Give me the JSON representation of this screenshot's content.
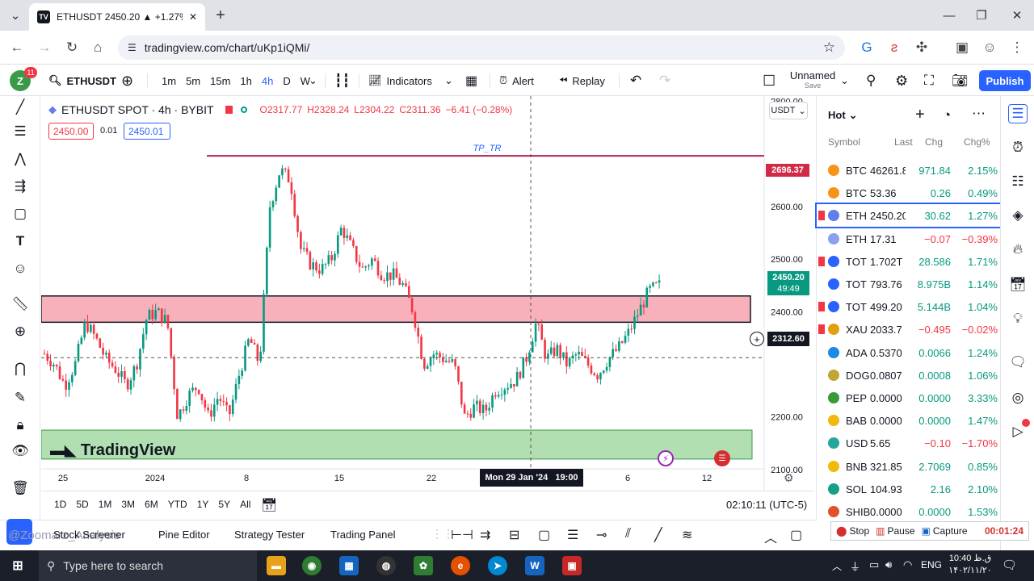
{
  "browser": {
    "tab_title": "ETHUSDT 2450.20 ▲ +1.27% U",
    "tab_favicon": "TV",
    "url": "tradingview.com/chart/uKp1iQMi/"
  },
  "toolbar": {
    "avatar": "Z",
    "notif_count": "11",
    "symbol": "ETHUSDT",
    "intervals": [
      "1m",
      "5m",
      "15m",
      "1h",
      "4h",
      "D",
      "W"
    ],
    "active_interval": "4h",
    "indicators": "Indicators",
    "alert": "Alert",
    "replay": "Replay",
    "layout_name": "Unnamed",
    "layout_status": "Save",
    "publish": "Publish"
  },
  "chart": {
    "legend_title": "ETHUSDT SPOT · 4h · BYBIT",
    "open": "O2317.77",
    "high": "H2328.24",
    "low": "L2304.22",
    "close": "C2311.36",
    "change": "−6.41 (−0.28%)",
    "sell_price": "2450.00",
    "spread": "0.01",
    "buy_price": "2450.01",
    "currency": "USDT",
    "line_label": "TP_TR",
    "line_price": "2696.37",
    "last_price": "2450.20",
    "countdown": "49:49",
    "crosshair_price": "2312.60",
    "crosshair_date": "Mon 29 Jan '24   19:00",
    "watermark": "TradingView",
    "price_ticks": [
      "2800.00",
      "2600.00",
      "2500.00",
      "2400.00",
      "2200.00",
      "2100.00"
    ],
    "date_ticks": [
      "25",
      "2024",
      "8",
      "15",
      "22",
      "6",
      "12"
    ]
  },
  "chart_data": {
    "type": "candlestick",
    "title": "ETHUSDT SPOT · 4h · BYBIT",
    "y_unit": "USDT",
    "ylim": [
      2060,
      2810
    ],
    "x_ticks": [
      "25",
      "2024",
      "8",
      "15",
      "22",
      "6",
      "12"
    ],
    "levels": [
      {
        "label": "TP_TR",
        "price": 2696.37,
        "color": "#b2234a"
      },
      {
        "label": "resistance zone",
        "from": 2380,
        "to": 2430,
        "color": "#f7a8b4"
      },
      {
        "label": "support zone",
        "from": 2120,
        "to": 2175,
        "color": "#a3d9a5"
      }
    ],
    "close_path": [
      2320,
      2300,
      2260,
      2300,
      2380,
      2350,
      2310,
      2290,
      2260,
      2300,
      2390,
      2400,
      2380,
      2200,
      2240,
      2260,
      2200,
      2240,
      2200,
      2280,
      2350,
      2300,
      2600,
      2670,
      2650,
      2520,
      2490,
      2480,
      2500,
      2560,
      2520,
      2480,
      2500,
      2470,
      2470,
      2450,
      2400,
      2300,
      2320,
      2310,
      2300,
      2200,
      2220,
      2210,
      2250,
      2260,
      2270,
      2310,
      2380,
      2310,
      2330,
      2300,
      2320,
      2300,
      2280,
      2310,
      2330,
      2360,
      2400,
      2440,
      2450
    ],
    "last_price": 2450.2
  },
  "bottom": {
    "ranges": [
      "1D",
      "5D",
      "1M",
      "3M",
      "6M",
      "YTD",
      "1Y",
      "5Y",
      "All"
    ],
    "time": "02:10:11 (UTC-5)"
  },
  "panels": [
    "Stock Screener",
    "Pine Editor",
    "Strategy Tester",
    "Trading Panel"
  ],
  "watermark_text": "@Zoomarz_Analysis",
  "watchlist": {
    "title": "Hot",
    "headers": [
      "Symbol",
      "Last",
      "Chg",
      "Chg%"
    ],
    "rows": [
      {
        "sym": "BTC",
        "last": "46261.8",
        "chg": "971.84",
        "pct": "2.15%",
        "dir": "up",
        "color": "#f7931a",
        "flag": false
      },
      {
        "sym": "BTC",
        "last": "53.36",
        "chg": "0.26",
        "pct": "0.49%",
        "dir": "up",
        "color": "#f7931a",
        "flag": false
      },
      {
        "sym": "ETH",
        "last": "2450.20",
        "chg": "30.62",
        "pct": "1.27%",
        "dir": "up",
        "color": "#627eea",
        "flag": true
      },
      {
        "sym": "ETH",
        "last": "17.31",
        "chg": "−0.07",
        "pct": "−0.39%",
        "dir": "down",
        "color": "#8aa0f0",
        "flag": false
      },
      {
        "sym": "TOT",
        "last": "1.702T",
        "chg": "28.586",
        "pct": "1.71%",
        "dir": "up",
        "color": "#2962ff",
        "flag": true
      },
      {
        "sym": "TOT",
        "last": "793.76",
        "chg": "8.975B",
        "pct": "1.14%",
        "dir": "up",
        "color": "#2962ff",
        "flag": false
      },
      {
        "sym": "TOT",
        "last": "499.20",
        "chg": "5.144B",
        "pct": "1.04%",
        "dir": "up",
        "color": "#2962ff",
        "flag": true
      },
      {
        "sym": "XAU",
        "last": "2033.7",
        "chg": "−0.495",
        "pct": "−0.02%",
        "dir": "down",
        "color": "#e0a010",
        "flag": true
      },
      {
        "sym": "ADA",
        "last": "0.5370",
        "chg": "0.0066",
        "pct": "1.24%",
        "dir": "up",
        "color": "#1e88e5",
        "flag": false
      },
      {
        "sym": "DOG",
        "last": "0.0807",
        "chg": "0.0008",
        "pct": "1.06%",
        "dir": "up",
        "color": "#c2a633",
        "flag": false
      },
      {
        "sym": "PEP",
        "last": "0.0000",
        "chg": "0.0000",
        "pct": "3.33%",
        "dir": "up",
        "color": "#3a9a3a",
        "flag": false
      },
      {
        "sym": "BAB",
        "last": "0.0000",
        "chg": "0.0000",
        "pct": "1.47%",
        "dir": "up",
        "color": "#f0b90b",
        "flag": false
      },
      {
        "sym": "USD",
        "last": "5.65",
        "chg": "−0.10",
        "pct": "−1.70%",
        "dir": "down",
        "color": "#26a69a",
        "flag": false
      },
      {
        "sym": "BNB",
        "last": "321.85",
        "chg": "2.7069",
        "pct": "0.85%",
        "dir": "up",
        "color": "#f0b90b",
        "flag": false
      },
      {
        "sym": "SOL",
        "last": "104.93",
        "chg": "2.16",
        "pct": "2.10%",
        "dir": "up",
        "color": "#14a085",
        "flag": false
      },
      {
        "sym": "SHIB",
        "last": "0.0000",
        "chg": "0.0000",
        "pct": "1.53%",
        "dir": "up",
        "color": "#e0502a",
        "flag": false
      }
    ]
  },
  "recorder": {
    "stop": "Stop",
    "pause": "Pause",
    "capture": "Capture",
    "elapsed": "00:01:24"
  },
  "taskbar": {
    "search": "Type here to search",
    "lang": "ENG",
    "time": "10:40 ق.ظ",
    "date": "۱۴۰۲/۱۱/۲۰"
  },
  "colors": {
    "up": "#089981",
    "down": "#f23645",
    "accent": "#2962ff"
  }
}
